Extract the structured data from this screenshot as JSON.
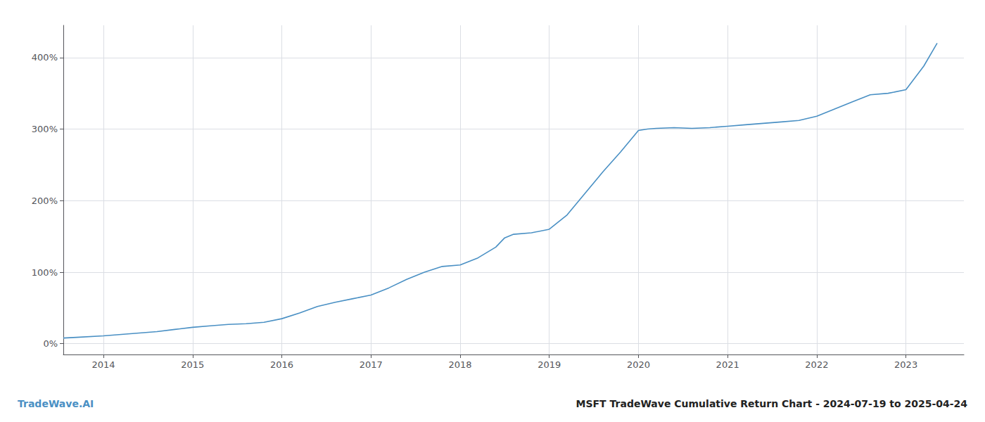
{
  "chart_data": {
    "type": "line",
    "title": "MSFT TradeWave Cumulative Return Chart - 2024-07-19 to 2025-04-24",
    "annotations": [
      "TradeWave.AI"
    ],
    "color": "#4a90c4",
    "x": [
      2013.55,
      2013.7,
      2014.0,
      2014.2,
      2014.4,
      2014.6,
      2014.8,
      2015.0,
      2015.2,
      2015.4,
      2015.6,
      2015.8,
      2016.0,
      2016.2,
      2016.4,
      2016.6,
      2016.8,
      2017.0,
      2017.2,
      2017.4,
      2017.6,
      2017.8,
      2018.0,
      2018.2,
      2018.4,
      2018.5,
      2018.6,
      2018.8,
      2019.0,
      2019.2,
      2019.4,
      2019.6,
      2019.8,
      2020.0,
      2020.1,
      2020.2,
      2020.4,
      2020.6,
      2020.8,
      2021.0,
      2021.2,
      2021.4,
      2021.5,
      2021.6,
      2021.8,
      2022.0,
      2022.2,
      2022.4,
      2022.5,
      2022.6,
      2022.8,
      2023.0,
      2023.2,
      2023.35
    ],
    "values": [
      8,
      9,
      11,
      13,
      15,
      17,
      20,
      23,
      25,
      27,
      28,
      30,
      35,
      43,
      52,
      58,
      63,
      68,
      78,
      90,
      100,
      108,
      110,
      120,
      135,
      148,
      153,
      155,
      160,
      180,
      210,
      240,
      268,
      298,
      300,
      301,
      302,
      301,
      302,
      304,
      306,
      308,
      309,
      310,
      312,
      318,
      328,
      338,
      343,
      348,
      350,
      355,
      388,
      420
    ],
    "xlim": [
      2013.55,
      2023.65
    ],
    "xticks": [
      2014,
      2015,
      2016,
      2017,
      2018,
      2019,
      2020,
      2021,
      2022,
      2023
    ],
    "ylim": [
      -15,
      445
    ],
    "yticks": [
      {
        "value": 0,
        "label": "0%"
      },
      {
        "value": 100,
        "label": "100%"
      },
      {
        "value": 200,
        "label": "200%"
      },
      {
        "value": 300,
        "label": "300%"
      },
      {
        "value": 400,
        "label": "400%"
      }
    ],
    "grid": true
  }
}
